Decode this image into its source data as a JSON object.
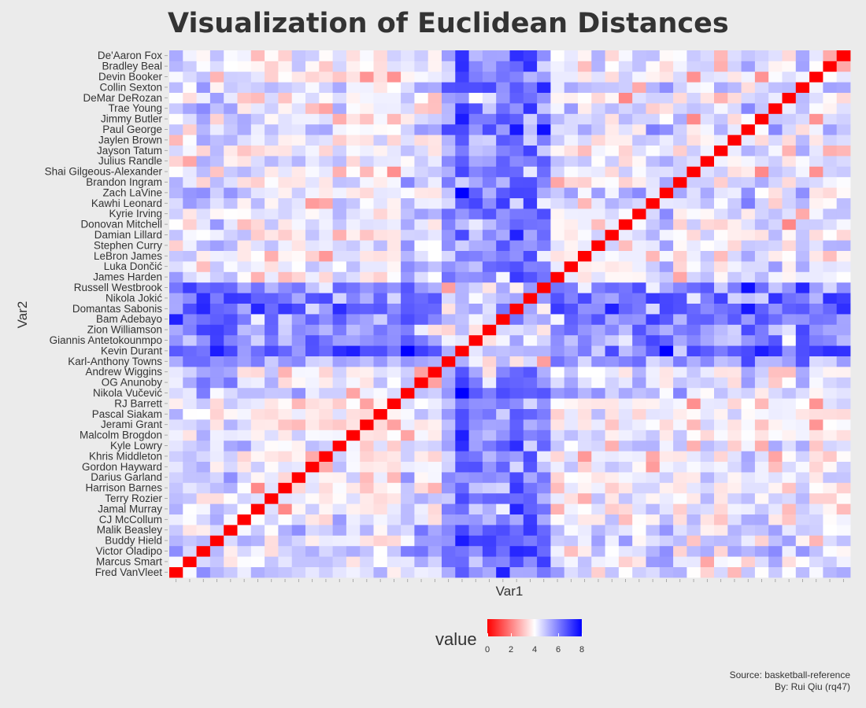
{
  "title": "Visualization of Euclidean Distances",
  "chart_data": {
    "type": "heatmap",
    "title": "Visualization of Euclidean Distances",
    "xlabel": "Var1",
    "ylabel": "Var2",
    "players": [
      "Fred VanVleet",
      "Marcus Smart",
      "Victor Oladipo",
      "Buddy Hield",
      "Malik Beasley",
      "CJ McCollum",
      "Jamal Murray",
      "Terry Rozier",
      "Harrison Barnes",
      "Darius Garland",
      "Gordon Hayward",
      "Khris Middleton",
      "Kyle Lowry",
      "Malcolm Brogdon",
      "Jerami Grant",
      "Pascal Siakam",
      "RJ Barrett",
      "Nikola Vučević",
      "OG Anunoby",
      "Andrew Wiggins",
      "Karl-Anthony Towns",
      "Kevin Durant",
      "Giannis Antetokounmpo",
      "Zion Williamson",
      "Bam Adebayo",
      "Domantas Sabonis",
      "Nikola Jokić",
      "Russell Westbrook",
      "James Harden",
      "Luka Dončić",
      "LeBron James",
      "Stephen Curry",
      "Damian Lillard",
      "Donovan Mitchell",
      "Kyrie Irving",
      "Kawhi Leonard",
      "Zach LaVine",
      "Brandon Ingram",
      "Shai Gilgeous-Alexander",
      "Julius Randle",
      "Jayson Tatum",
      "Jaylen Brown",
      "Paul George",
      "Jimmy Butler",
      "Trae Young",
      "DeMar DeRozan",
      "Collin Sexton",
      "Devin Booker",
      "Bradley Beal",
      "De'Aaron Fox"
    ],
    "x_tick_labels": "none",
    "value_range": [
      0,
      8
    ],
    "color_scale": {
      "low": "#ff0000",
      "mid": "#ffffff",
      "high": "#0000ff",
      "midpoint": 4
    },
    "diagonal_value": 0,
    "values_note": "Symmetric distance matrix; diagonal cells are 0.",
    "legend_position": "bottom"
  },
  "legend": {
    "title": "value",
    "ticks": [
      "0",
      "2",
      "4",
      "6",
      "8"
    ]
  },
  "caption": {
    "source": "Source: basketball-reference",
    "author": "By: Rui Qiu (rq47)"
  }
}
